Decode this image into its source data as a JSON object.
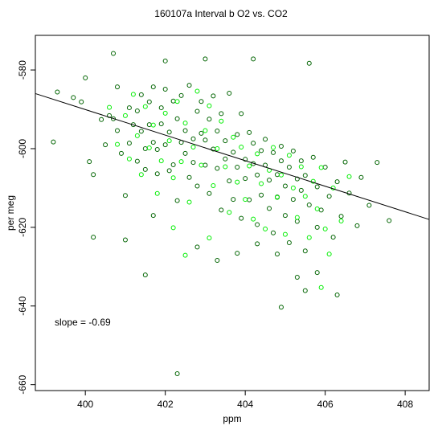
{
  "chart_data": {
    "type": "scatter",
    "title": "160107a   Interval b O2 vs. CO2",
    "xlabel": "ppm",
    "ylabel": "per meg",
    "xlim": [
      398.75,
      408.6
    ],
    "ylim": [
      -661.5,
      -571.2
    ],
    "xticks": [
      400,
      402,
      404,
      406,
      408
    ],
    "yticks": [
      -580,
      -600,
      -620,
      -640,
      -660
    ],
    "grid": false,
    "legend": "none",
    "annotation": "slope =  -0.69",
    "fit_line": {
      "slope": -0.69,
      "x": [
        398.75,
        408.6
      ],
      "y": [
        -586.0,
        -618.0
      ]
    },
    "series": [
      {
        "color": "#006400",
        "points": [
          [
            399.2,
            -598.3
          ],
          [
            399.3,
            -585.6
          ],
          [
            399.7,
            -587.0
          ],
          [
            399.9,
            -588.1
          ],
          [
            400.0,
            -582.0
          ],
          [
            400.1,
            -603.3
          ],
          [
            400.2,
            -606.6
          ],
          [
            400.4,
            -592.6
          ],
          [
            400.5,
            -599.0
          ],
          [
            400.6,
            -591.6
          ],
          [
            400.7,
            -592.4
          ],
          [
            400.8,
            -595.4
          ],
          [
            400.8,
            -584.3
          ],
          [
            400.9,
            -601.2
          ],
          [
            401.0,
            -611.9
          ],
          [
            401.1,
            -598.6
          ],
          [
            401.1,
            -589.6
          ],
          [
            401.2,
            -593.9
          ],
          [
            401.3,
            -603.2
          ],
          [
            401.3,
            -590.4
          ],
          [
            401.4,
            -586.3
          ],
          [
            401.4,
            -595.6
          ],
          [
            401.5,
            -605.3
          ],
          [
            401.5,
            -600.0
          ],
          [
            401.6,
            -588.1
          ],
          [
            401.6,
            -593.9
          ],
          [
            401.7,
            -598.4
          ],
          [
            401.7,
            -584.3
          ],
          [
            401.8,
            -606.4
          ],
          [
            401.8,
            -600.2
          ],
          [
            401.9,
            -589.6
          ],
          [
            401.9,
            -593.7
          ],
          [
            402.0,
            -599.0
          ],
          [
            402.0,
            -584.9
          ],
          [
            402.1,
            -605.6
          ],
          [
            402.1,
            -595.8
          ],
          [
            402.2,
            -587.9
          ],
          [
            402.2,
            -604.1
          ],
          [
            402.3,
            -592.4
          ],
          [
            402.3,
            -613.2
          ],
          [
            402.4,
            -598.4
          ],
          [
            402.4,
            -586.5
          ],
          [
            402.5,
            -601.2
          ],
          [
            402.5,
            -595.4
          ],
          [
            402.6,
            -607.3
          ],
          [
            402.6,
            -583.9
          ],
          [
            402.7,
            -597.5
          ],
          [
            402.7,
            -603.5
          ],
          [
            402.8,
            -590.5
          ],
          [
            402.8,
            -609.5
          ],
          [
            402.9,
            -596.1
          ],
          [
            402.9,
            -588.0
          ],
          [
            403.0,
            -604.2
          ],
          [
            403.0,
            -597.8
          ],
          [
            403.1,
            -592.5
          ],
          [
            403.1,
            -611.4
          ],
          [
            403.2,
            -600.1
          ],
          [
            403.2,
            -586.6
          ],
          [
            403.3,
            -605.0
          ],
          [
            403.3,
            -595.5
          ],
          [
            403.4,
            -615.6
          ],
          [
            403.4,
            -591.1
          ],
          [
            403.5,
            -602.6
          ],
          [
            403.5,
            -598.0
          ],
          [
            403.6,
            -608.2
          ],
          [
            403.6,
            -585.9
          ],
          [
            403.7,
            -600.9
          ],
          [
            403.7,
            -612.9
          ],
          [
            403.8,
            -596.4
          ],
          [
            403.8,
            -604.7
          ],
          [
            403.9,
            -591.1
          ],
          [
            403.9,
            -617.7
          ],
          [
            404.0,
            -602.7
          ],
          [
            404.0,
            -607.6
          ],
          [
            404.1,
            -595.9
          ],
          [
            404.1,
            -613.0
          ],
          [
            404.2,
            -603.8
          ],
          [
            404.2,
            -598.6
          ],
          [
            404.3,
            -619.3
          ],
          [
            404.3,
            -606.7
          ],
          [
            404.4,
            -600.5
          ],
          [
            404.4,
            -611.8
          ],
          [
            404.5,
            -597.6
          ],
          [
            404.5,
            -604.2
          ],
          [
            404.6,
            -615.2
          ],
          [
            404.6,
            -608.0
          ],
          [
            404.7,
            -601.0
          ],
          [
            404.7,
            -621.4
          ],
          [
            404.8,
            -606.6
          ],
          [
            404.8,
            -612.3
          ],
          [
            404.9,
            -599.4
          ],
          [
            404.9,
            -603.1
          ],
          [
            405.0,
            -617.0
          ],
          [
            405.0,
            -609.5
          ],
          [
            405.1,
            -604.7
          ],
          [
            405.1,
            -623.9
          ],
          [
            405.2,
            -600.6
          ],
          [
            405.2,
            -612.9
          ],
          [
            405.3,
            -607.7
          ],
          [
            405.3,
            -618.5
          ],
          [
            405.4,
            -603.1
          ],
          [
            405.4,
            -610.6
          ],
          [
            405.5,
            -626.0
          ],
          [
            405.5,
            -606.8
          ],
          [
            405.6,
            -614.3
          ],
          [
            405.7,
            -602.2
          ],
          [
            405.8,
            -620.0
          ],
          [
            405.8,
            -609.7
          ],
          [
            405.9,
            -615.6
          ],
          [
            406.0,
            -604.7
          ],
          [
            406.1,
            -612.1
          ],
          [
            406.2,
            -622.5
          ],
          [
            406.3,
            -608.4
          ],
          [
            406.4,
            -617.2
          ],
          [
            406.5,
            -603.4
          ],
          [
            406.6,
            -611.3
          ],
          [
            406.8,
            -619.6
          ],
          [
            406.9,
            -607.3
          ],
          [
            407.1,
            -614.4
          ],
          [
            407.3,
            -603.5
          ],
          [
            407.6,
            -618.3
          ],
          [
            401.5,
            -632.1
          ],
          [
            401.7,
            -617.0
          ],
          [
            402.8,
            -625.0
          ],
          [
            403.3,
            -628.4
          ],
          [
            403.8,
            -626.6
          ],
          [
            404.3,
            -624.2
          ],
          [
            404.8,
            -626.8
          ],
          [
            405.3,
            -632.7
          ],
          [
            405.8,
            -631.5
          ],
          [
            406.3,
            -637.2
          ],
          [
            402.0,
            -577.7
          ],
          [
            403.0,
            -577.2
          ],
          [
            404.2,
            -577.2
          ],
          [
            405.6,
            -578.3
          ],
          [
            400.7,
            -575.8
          ],
          [
            402.3,
            -657.2
          ],
          [
            404.9,
            -640.3
          ],
          [
            405.5,
            -636.1
          ],
          [
            400.2,
            -622.5
          ],
          [
            401.0,
            -623.2
          ]
        ]
      },
      {
        "color": "#00ee00",
        "points": [
          [
            400.6,
            -589.5
          ],
          [
            400.8,
            -598.9
          ],
          [
            401.0,
            -591.6
          ],
          [
            401.1,
            -602.6
          ],
          [
            401.2,
            -586.2
          ],
          [
            401.3,
            -596.7
          ],
          [
            401.4,
            -606.6
          ],
          [
            401.5,
            -589.3
          ],
          [
            401.6,
            -599.8
          ],
          [
            401.7,
            -594.0
          ],
          [
            401.8,
            -611.4
          ],
          [
            401.9,
            -603.1
          ],
          [
            402.0,
            -591.0
          ],
          [
            402.1,
            -598.0
          ],
          [
            402.2,
            -607.4
          ],
          [
            402.3,
            -588.0
          ],
          [
            402.4,
            -603.3
          ],
          [
            402.5,
            -593.5
          ],
          [
            402.6,
            -613.6
          ],
          [
            402.7,
            -599.6
          ],
          [
            402.8,
            -585.4
          ],
          [
            402.9,
            -604.2
          ],
          [
            403.0,
            -595.4
          ],
          [
            403.1,
            -589.1
          ],
          [
            403.2,
            -609.4
          ],
          [
            403.3,
            -600.0
          ],
          [
            403.4,
            -593.0
          ],
          [
            403.5,
            -604.6
          ],
          [
            403.6,
            -616.2
          ],
          [
            403.7,
            -597.1
          ],
          [
            403.8,
            -608.5
          ],
          [
            403.9,
            -599.6
          ],
          [
            404.0,
            -612.9
          ],
          [
            404.1,
            -604.4
          ],
          [
            404.2,
            -617.9
          ],
          [
            404.3,
            -601.3
          ],
          [
            404.4,
            -608.9
          ],
          [
            404.5,
            -620.4
          ],
          [
            404.6,
            -605.5
          ],
          [
            404.7,
            -599.7
          ],
          [
            404.8,
            -612.4
          ],
          [
            404.9,
            -606.7
          ],
          [
            405.0,
            -621.8
          ],
          [
            405.1,
            -601.7
          ],
          [
            405.2,
            -610.0
          ],
          [
            405.3,
            -617.5
          ],
          [
            405.4,
            -604.6
          ],
          [
            405.5,
            -612.1
          ],
          [
            405.6,
            -622.6
          ],
          [
            405.7,
            -608.3
          ],
          [
            405.8,
            -615.3
          ],
          [
            405.9,
            -604.8
          ],
          [
            406.0,
            -620.4
          ],
          [
            406.1,
            -626.8
          ],
          [
            406.2,
            -610.0
          ],
          [
            406.4,
            -618.4
          ],
          [
            406.6,
            -607.1
          ],
          [
            402.2,
            -620.1
          ],
          [
            402.5,
            -627.1
          ],
          [
            403.1,
            -622.7
          ],
          [
            405.9,
            -635.3
          ]
        ]
      }
    ]
  }
}
